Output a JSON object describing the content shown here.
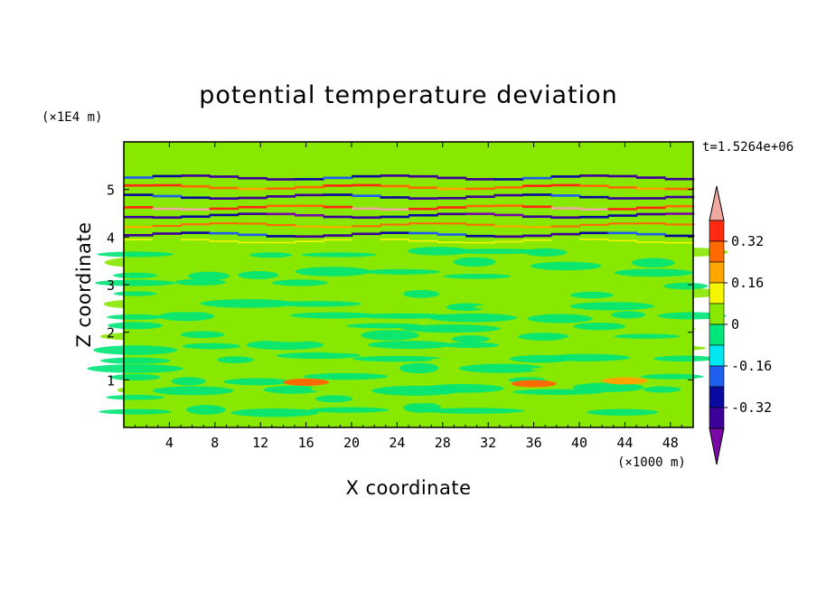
{
  "chart_data": {
    "type": "heatmap",
    "title": "potential temperature deviation",
    "xlabel": "X coordinate",
    "ylabel": "Z coordinate",
    "x_unit": "(×1000 m)",
    "y_unit": "(×1E4 m)",
    "time_label": "t=1.5264e+06",
    "xlim": [
      0,
      50
    ],
    "ylim": [
      0,
      6
    ],
    "x_ticks": [
      4,
      8,
      12,
      16,
      20,
      24,
      28,
      32,
      36,
      40,
      44,
      48
    ],
    "y_ticks": [
      1,
      2,
      3,
      4,
      5
    ],
    "colorbar": {
      "levels": [
        -0.48,
        -0.4,
        -0.32,
        -0.24,
        -0.16,
        -0.08,
        0,
        0.08,
        0.16,
        0.24,
        0.32,
        0.4,
        0.48
      ],
      "colors": [
        "#7a0aa8",
        "#3d0099",
        "#0a0aa0",
        "#1e5ff0",
        "#00e8f0",
        "#00e678",
        "#88e800",
        "#f5f500",
        "#ffa500",
        "#ff6a00",
        "#ff2a10",
        "#f0a8a0"
      ],
      "labels": [
        "0.32",
        "0.16",
        "0",
        "-0.16",
        "-0.32"
      ],
      "label_values": [
        0.32,
        0.16,
        0,
        -0.16,
        -0.32
      ]
    },
    "bands": [
      {
        "z": 5.25,
        "thickness": 0.05,
        "x_range": [
          0,
          50
        ],
        "value": -0.36
      },
      {
        "z": 5.05,
        "thickness": 0.05,
        "x_range": [
          0,
          50
        ],
        "value": 0.35
      },
      {
        "z": 4.85,
        "thickness": 0.05,
        "x_range": [
          0,
          50
        ],
        "value": -0.38
      },
      {
        "z": 4.62,
        "thickness": 0.05,
        "x_range": [
          0,
          50
        ],
        "value": 0.42
      },
      {
        "z": 4.45,
        "thickness": 0.05,
        "x_range": [
          0,
          50
        ],
        "value": -0.42
      },
      {
        "z": 4.25,
        "thickness": 0.04,
        "x_range": [
          0,
          50
        ],
        "value": 0.3
      },
      {
        "z": 4.05,
        "thickness": 0.05,
        "x_range": [
          0,
          50
        ],
        "value": -0.35
      },
      {
        "z": 3.92,
        "thickness": 0.03,
        "x_range": [
          0,
          50
        ],
        "value": 0.12
      }
    ],
    "hotspots": [
      {
        "x": 16,
        "z": 0.95,
        "value": 0.25
      },
      {
        "x": 36,
        "z": 0.92,
        "value": 0.3
      },
      {
        "x": 44,
        "z": 0.98,
        "value": 0.18
      }
    ],
    "background_value": 0.02
  }
}
